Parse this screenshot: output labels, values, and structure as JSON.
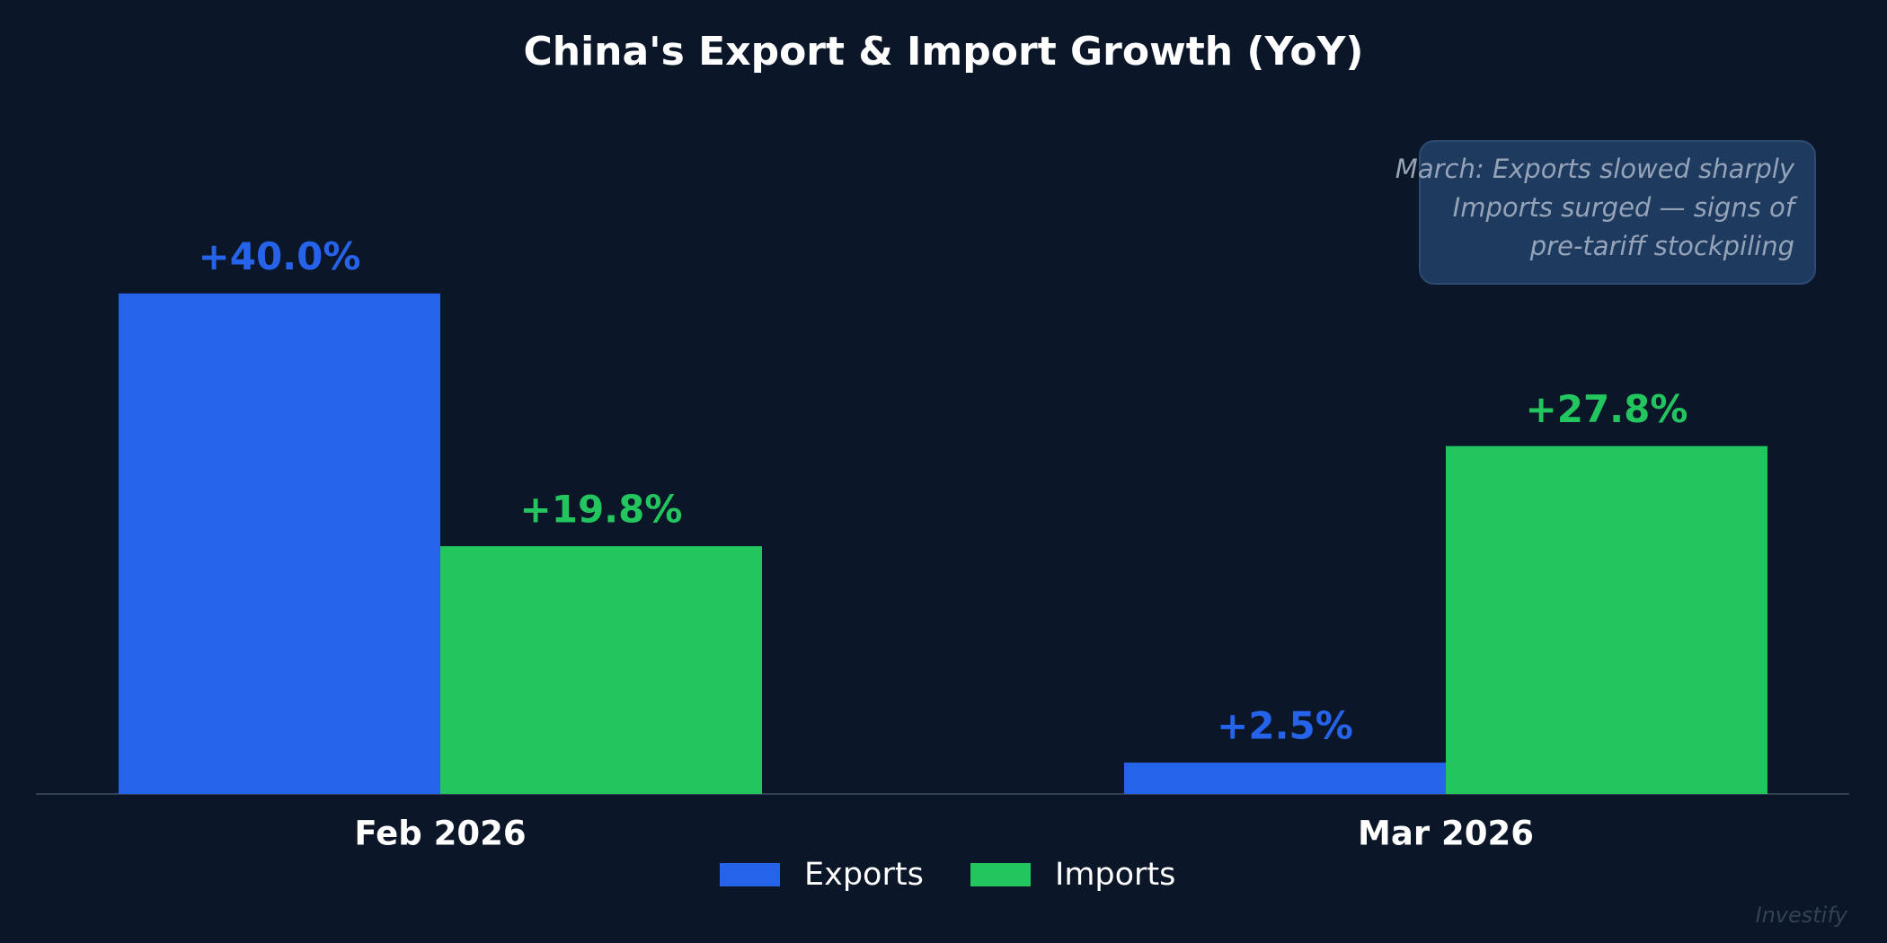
{
  "chart_data": {
    "type": "bar",
    "title": "China's Export & Import Growth (YoY)",
    "categories": [
      "Feb 2026",
      "Mar 2026"
    ],
    "series": [
      {
        "name": "Exports",
        "color": "#2563eb",
        "values": [
          40.0,
          2.5
        ],
        "value_labels": [
          "+40.0%",
          "+2.5%"
        ]
      },
      {
        "name": "Imports",
        "color": "#22c55e",
        "values": [
          19.8,
          27.8
        ],
        "value_labels": [
          "+19.8%",
          "+27.8%"
        ]
      }
    ],
    "ylim": [
      0,
      44
    ],
    "annotation": [
      "March: Exports slowed sharply",
      "Imports surged — signs of",
      "pre-tariff stockpiling"
    ],
    "watermark": "Investify"
  }
}
